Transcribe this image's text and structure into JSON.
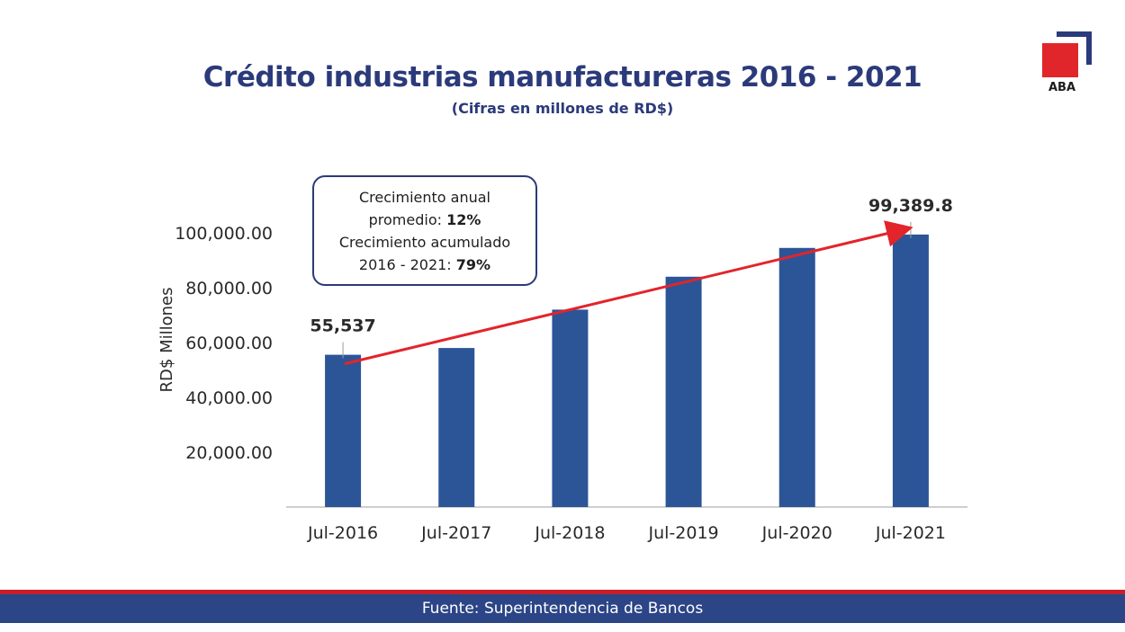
{
  "header": {
    "title": "Crédito industrias manufactureras 2016 - 2021",
    "subtitle": "(Cifras en millones de RD$)"
  },
  "logo": {
    "label": "ABA",
    "icon": "aba-logo-icon",
    "red": "#e0262a",
    "navy": "#2b3a7a"
  },
  "callout": {
    "line1": "Crecimiento anual",
    "line2_prefix": "promedio: ",
    "line2_value": "12%",
    "line3": "Crecimiento acumulado",
    "line4_prefix": "2016 - 2021: ",
    "line4_value": "79%"
  },
  "footer": {
    "source": "Fuente: Superintendencia de Bancos"
  },
  "colors": {
    "bar": "#2c5597",
    "trend": "#e3242b",
    "title": "#2b3a7a",
    "footer": "#2c4587"
  },
  "chart_data": {
    "type": "bar",
    "title": "Crédito industrias manufactureras 2016 - 2021",
    "subtitle": "(Cifras en millones de RD$)",
    "xlabel": "",
    "ylabel": "RD$ Millones",
    "categories": [
      "Jul-2016",
      "Jul-2017",
      "Jul-2018",
      "Jul-2019",
      "Jul-2020",
      "Jul-2021"
    ],
    "values": [
      55537,
      58000,
      72000,
      84000,
      94500,
      99389.8
    ],
    "ylim": [
      0,
      110000
    ],
    "yticks": [
      20000,
      40000,
      60000,
      80000,
      100000
    ],
    "ytick_labels": [
      "20,000.00",
      "40,000.00",
      "60,000.00",
      "80,000.00",
      "100,000.00"
    ],
    "data_labels": [
      {
        "category": "Jul-2016",
        "text": "55,537"
      },
      {
        "category": "Jul-2021",
        "text": "99,389.8"
      }
    ],
    "trend_arrow": {
      "from": "Jul-2016",
      "to": "Jul-2021",
      "color": "#e3242b"
    },
    "grid": false,
    "legend": "none"
  }
}
